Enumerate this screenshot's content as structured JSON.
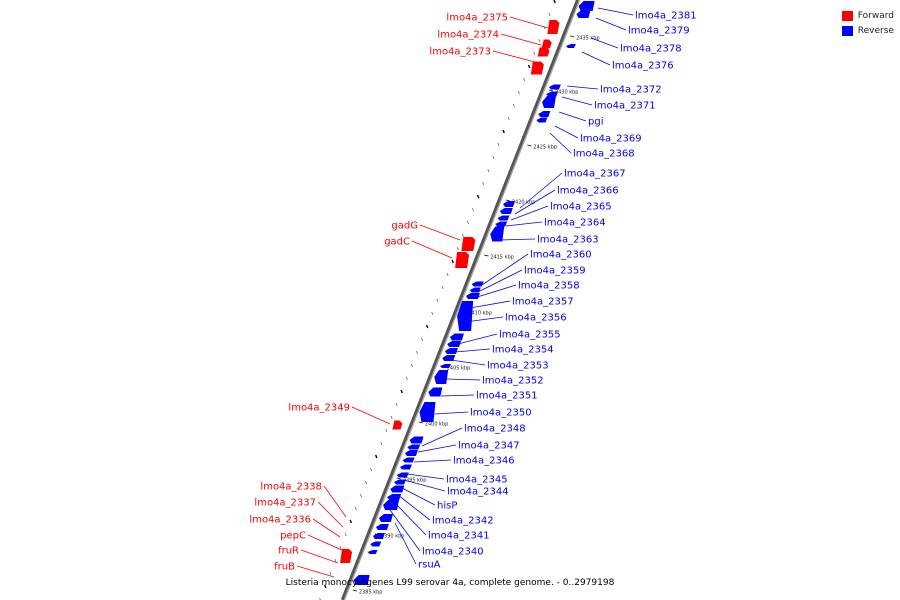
{
  "legend": {
    "forward_label": "Forward",
    "reverse_label": "Reverse",
    "forward_color": "#ff0000",
    "reverse_color": "#0000ff"
  },
  "caption": "Listeria monocytogenes L99 serovar 4a, complete genome. - 0..2979198",
  "axis": {
    "line_color": "#808080",
    "ticks": [
      "2435 kbp",
      "2430 kbp",
      "2425 kbp",
      "2420 kbp",
      "2415 kbp",
      "2410 kbp",
      "2405 kbp",
      "2400 kbp",
      "2395 kbp",
      "2390 kbp",
      "2385 kbp"
    ]
  },
  "forward_genes": [
    "lmo4a_2375",
    "lmo4a_2374",
    "lmo4a_2373",
    "gadG",
    "gadC",
    "lmo4a_2349",
    "lmo4a_2338",
    "lmo4a_2337",
    "lmo4a_2336",
    "pepC",
    "fruR",
    "fruB"
  ],
  "reverse_genes": [
    "lmo4a_2381",
    "lmo4a_2379",
    "lmo4a_2378",
    "lmo4a_2376",
    "lmo4a_2372",
    "lmo4a_2371",
    "pgi",
    "lmo4a_2369",
    "lmo4a_2368",
    "lmo4a_2367",
    "lmo4a_2366",
    "lmo4a_2365",
    "lmo4a_2364",
    "lmo4a_2363",
    "lmo4a_2360",
    "lmo4a_2359",
    "lmo4a_2358",
    "lmo4a_2357",
    "lmo4a_2356",
    "lmo4a_2355",
    "lmo4a_2354",
    "lmo4a_2353",
    "lmo4a_2352",
    "lmo4a_2351",
    "lmo4a_2350",
    "lmo4a_2348",
    "lmo4a_2347",
    "lmo4a_2346",
    "lmo4a_2345",
    "lmo4a_2344",
    "hisP",
    "lmo4a_2342",
    "lmo4a_2341",
    "lmo4a_2340",
    "rsuA"
  ]
}
